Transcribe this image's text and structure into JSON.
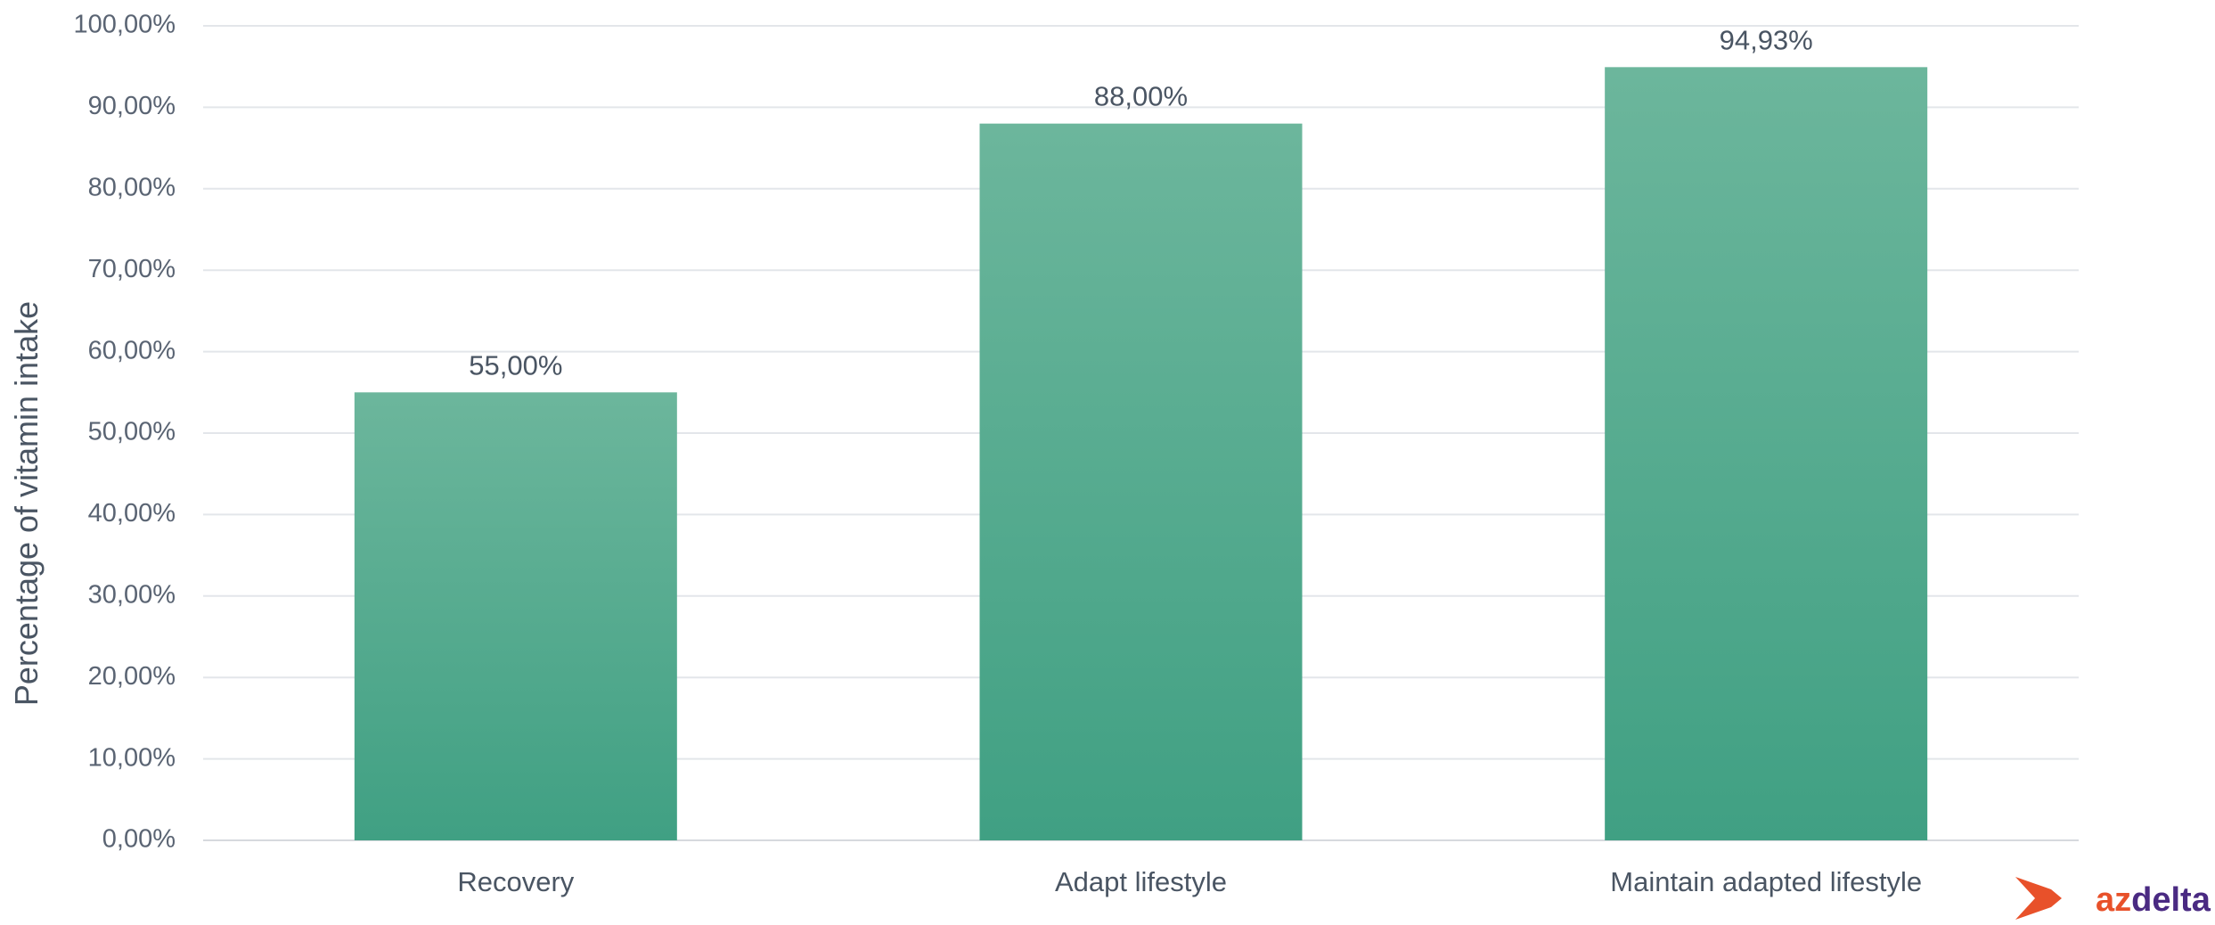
{
  "chart_data": {
    "type": "bar",
    "categories": [
      "Recovery",
      "Adapt lifestyle",
      "Maintain adapted lifestyle"
    ],
    "values": [
      55.0,
      88.0,
      94.93
    ],
    "data_labels": [
      "55,00%",
      "88,00%",
      "94,93%"
    ],
    "ylabel": "Percentage of vitamin intake",
    "ylim": [
      0,
      100
    ],
    "yticks": [
      "0,00%",
      "10,00%",
      "20,00%",
      "30,00%",
      "40,00%",
      "50,00%",
      "60,00%",
      "70,00%",
      "80,00%",
      "90,00%",
      "100,00%"
    ],
    "grid": true,
    "legend": "none",
    "bar_color_top": "#6cb69c",
    "bar_color_bottom": "#40a083"
  },
  "logo": {
    "prefix": "az",
    "suffix": "delta",
    "prefix_color": "#e8512a",
    "suffix_color": "#4a2a82",
    "mark_color": "#e8512a"
  }
}
